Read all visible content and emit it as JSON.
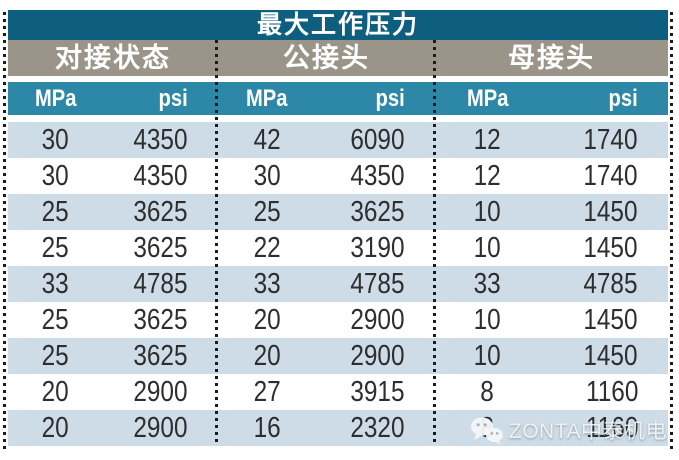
{
  "table": {
    "title": "最大工作压力",
    "groups": [
      "对接状态",
      "公接头",
      "母接头"
    ],
    "units": {
      "mpa": "MPa",
      "psi": "psi"
    },
    "rows": [
      [
        30,
        4350,
        42,
        6090,
        12,
        1740
      ],
      [
        30,
        4350,
        30,
        4350,
        12,
        1740
      ],
      [
        25,
        3625,
        25,
        3625,
        10,
        1450
      ],
      [
        25,
        3625,
        22,
        3190,
        10,
        1450
      ],
      [
        33,
        4785,
        33,
        4785,
        33,
        4785
      ],
      [
        25,
        3625,
        20,
        2900,
        10,
        1450
      ],
      [
        25,
        3625,
        20,
        2900,
        10,
        1450
      ],
      [
        20,
        2900,
        27,
        3915,
        8,
        1160
      ],
      [
        20,
        2900,
        16,
        2320,
        8,
        1160
      ]
    ]
  },
  "watermark": {
    "brand": "ZONTA中泰机电",
    "icon": "wechat-icon"
  },
  "colors": {
    "title_bg": "#0e5e80",
    "group_header_bg": "#9a9489",
    "units_bg": "#2d87a6",
    "row_alt_bg": "#cddce6",
    "body_text": "#2e2e2e",
    "header_text": "#ffffff",
    "dotted_border": "#1b1b1b"
  }
}
